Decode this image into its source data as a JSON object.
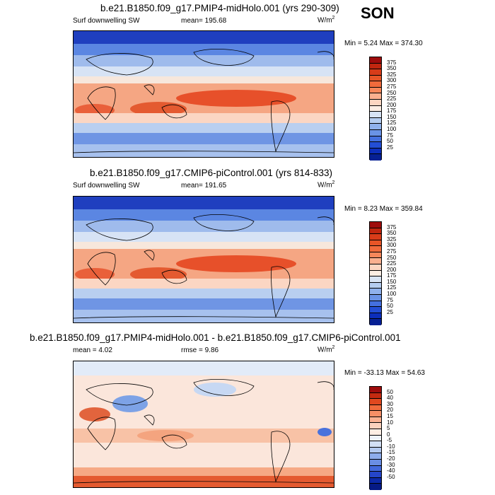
{
  "season": "SON",
  "panels": [
    {
      "title": "b.e21.B1850.f09_g17.PMIP4-midHolo.001 (yrs 290-309)",
      "variable": "Surf downwelling SW",
      "mean_label": "mean= 195.68",
      "units": "W/m",
      "units_sup": "2",
      "minmax": "Min =   5.24 Max = 374.30",
      "legend_labels": [
        "375",
        "350",
        "325",
        "300",
        "275",
        "250",
        "225",
        "200",
        "175",
        "150",
        "125",
        "100",
        "75",
        "50",
        "25"
      ],
      "legend_colors": [
        "#9e0c0c",
        "#c0260f",
        "#d83c19",
        "#e75527",
        "#f06b3c",
        "#f6875a",
        "#fab08f",
        "#fcd6c1",
        "#fbeee4",
        "#d8e4f5",
        "#b5cdf0",
        "#8fb1ec",
        "#6a93e6",
        "#4470df",
        "#234ed5",
        "#0c2ebb",
        "#062094"
      ]
    },
    {
      "title": "b.e21.B1850.f09_g17.CMIP6-piControl.001 (yrs 814-833)",
      "variable": "Surf downwelling SW",
      "mean_label": "mean= 191.65",
      "units": "W/m",
      "units_sup": "2",
      "minmax": "Min =   8.23 Max = 359.84",
      "legend_labels": [
        "375",
        "350",
        "325",
        "300",
        "275",
        "250",
        "225",
        "200",
        "175",
        "150",
        "125",
        "100",
        "75",
        "50",
        "25"
      ],
      "legend_colors": [
        "#9e0c0c",
        "#c0260f",
        "#d83c19",
        "#e75527",
        "#f06b3c",
        "#f6875a",
        "#fab08f",
        "#fcd6c1",
        "#fbeee4",
        "#d8e4f5",
        "#b5cdf0",
        "#8fb1ec",
        "#6a93e6",
        "#4470df",
        "#234ed5",
        "#0c2ebb",
        "#062094"
      ]
    },
    {
      "title": "b.e21.B1850.f09_g17.PMIP4-midHolo.001 - b.e21.B1850.f09_g17.CMIP6-piControl.001",
      "mean_label": "mean =   4.02",
      "rmse_label": "rmse =   9.86",
      "units": "W/m",
      "units_sup": "2",
      "minmax": "Min = -33.13 Max =  54.63",
      "legend_labels": [
        "50",
        "40",
        "30",
        "20",
        "15",
        "10",
        "5",
        "0",
        "-5",
        "-10",
        "-15",
        "-20",
        "-30",
        "-40",
        "-50"
      ],
      "legend_colors": [
        "#9e0c0c",
        "#c42a10",
        "#e0481f",
        "#f06b3c",
        "#f68f66",
        "#f9b192",
        "#fcd2bd",
        "#fdeee4",
        "#eef3fb",
        "#d3e0f5",
        "#b3c9ef",
        "#8daceb",
        "#6a8ee4",
        "#4369dc",
        "#2546c9",
        "#0c29a8",
        "#061a85"
      ]
    }
  ]
}
